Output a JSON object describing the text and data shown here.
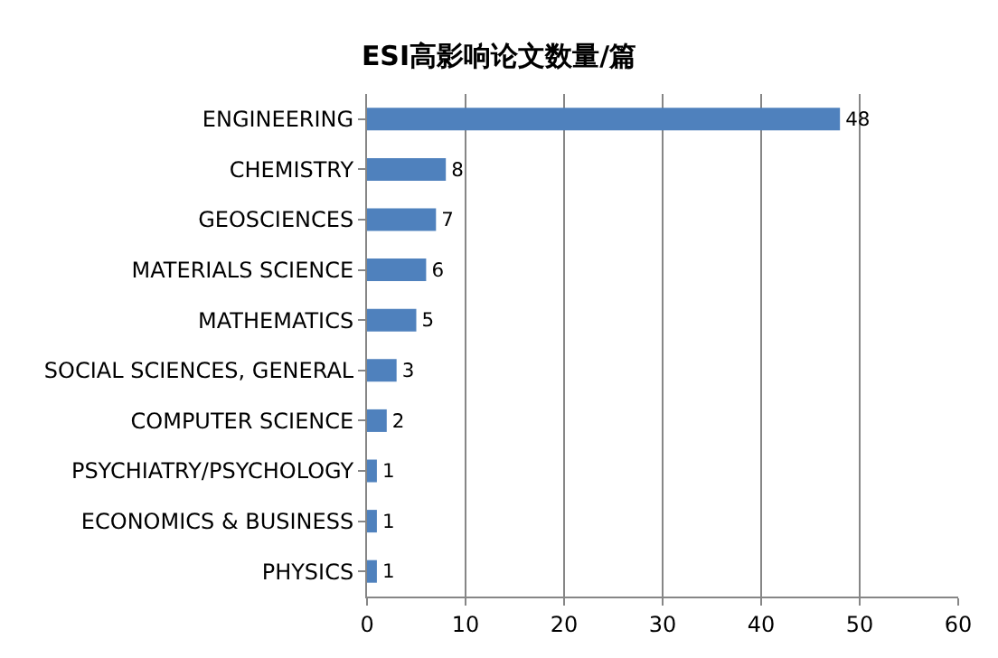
{
  "chart_data": {
    "type": "bar",
    "orientation": "horizontal",
    "title": "ESI高影响论文数量/篇",
    "categories": [
      "ENGINEERING",
      "CHEMISTRY",
      "GEOSCIENCES",
      "MATERIALS SCIENCE",
      "MATHEMATICS",
      "SOCIAL SCIENCES, GENERAL",
      "COMPUTER SCIENCE",
      "PSYCHIATRY/PSYCHOLOGY",
      "ECONOMICS & BUSINESS",
      "PHYSICS"
    ],
    "values": [
      48,
      8,
      7,
      6,
      5,
      3,
      2,
      1,
      1,
      1
    ],
    "color": "#4f81bd",
    "xlim": [
      0,
      60
    ],
    "xticks": [
      0,
      10,
      20,
      30,
      40,
      50,
      60
    ],
    "grid": "x",
    "data_labels": true,
    "legend": false
  }
}
